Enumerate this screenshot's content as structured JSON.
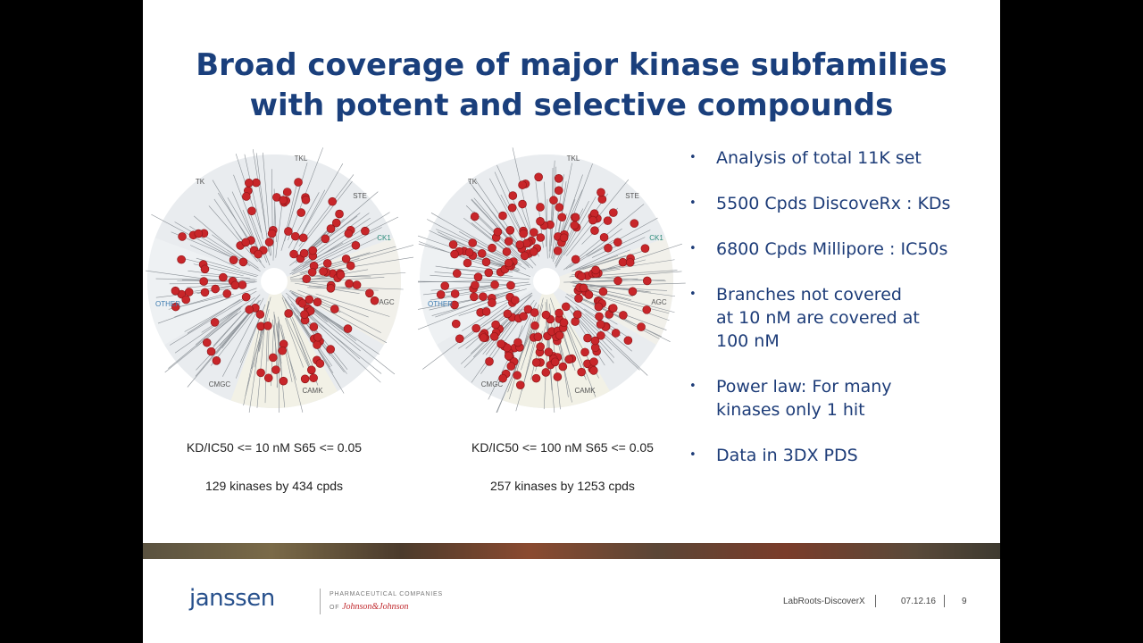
{
  "title": [
    "Broad coverage of major kinase subfamilies",
    "with potent and selective compounds"
  ],
  "panels": [
    {
      "tree_labels": [
        "TK",
        "TKL",
        "STE",
        "CK1",
        "AGC",
        "CAMK",
        "CMGC",
        "OTHER"
      ],
      "criteria": "KD/IC50 <= 10 nM  S65 <= 0.05",
      "summary": "129 kinases by 434 cpds"
    },
    {
      "tree_labels": [
        "TK",
        "TKL",
        "STE",
        "CK1",
        "AGC",
        "CAMK",
        "CMGC",
        "OTHER"
      ],
      "criteria": "KD/IC50 <= 100 nM  S65 <= 0.05",
      "summary": "257 kinases by 1253 cpds"
    }
  ],
  "bullets": [
    [
      "Analysis of total 11K set"
    ],
    [
      "5500 Cpds DiscoveRx : KDs"
    ],
    [
      "6800 Cpds Millipore : IC50s"
    ],
    [
      "Branches not covered",
      "at 10 nM are covered at",
      "100 nM"
    ],
    [
      "Power law: For many",
      "kinases only 1 hit"
    ],
    [
      "Data in 3DX PDS"
    ]
  ],
  "footer": {
    "logo": "janssen",
    "company_line1": "PHARMACEUTICAL COMPANIES",
    "company_line2": "OF",
    "company_brand": "Johnson&Johnson",
    "event": "LabRoots-DiscoverX",
    "date": "07.12.16",
    "page": "9"
  }
}
